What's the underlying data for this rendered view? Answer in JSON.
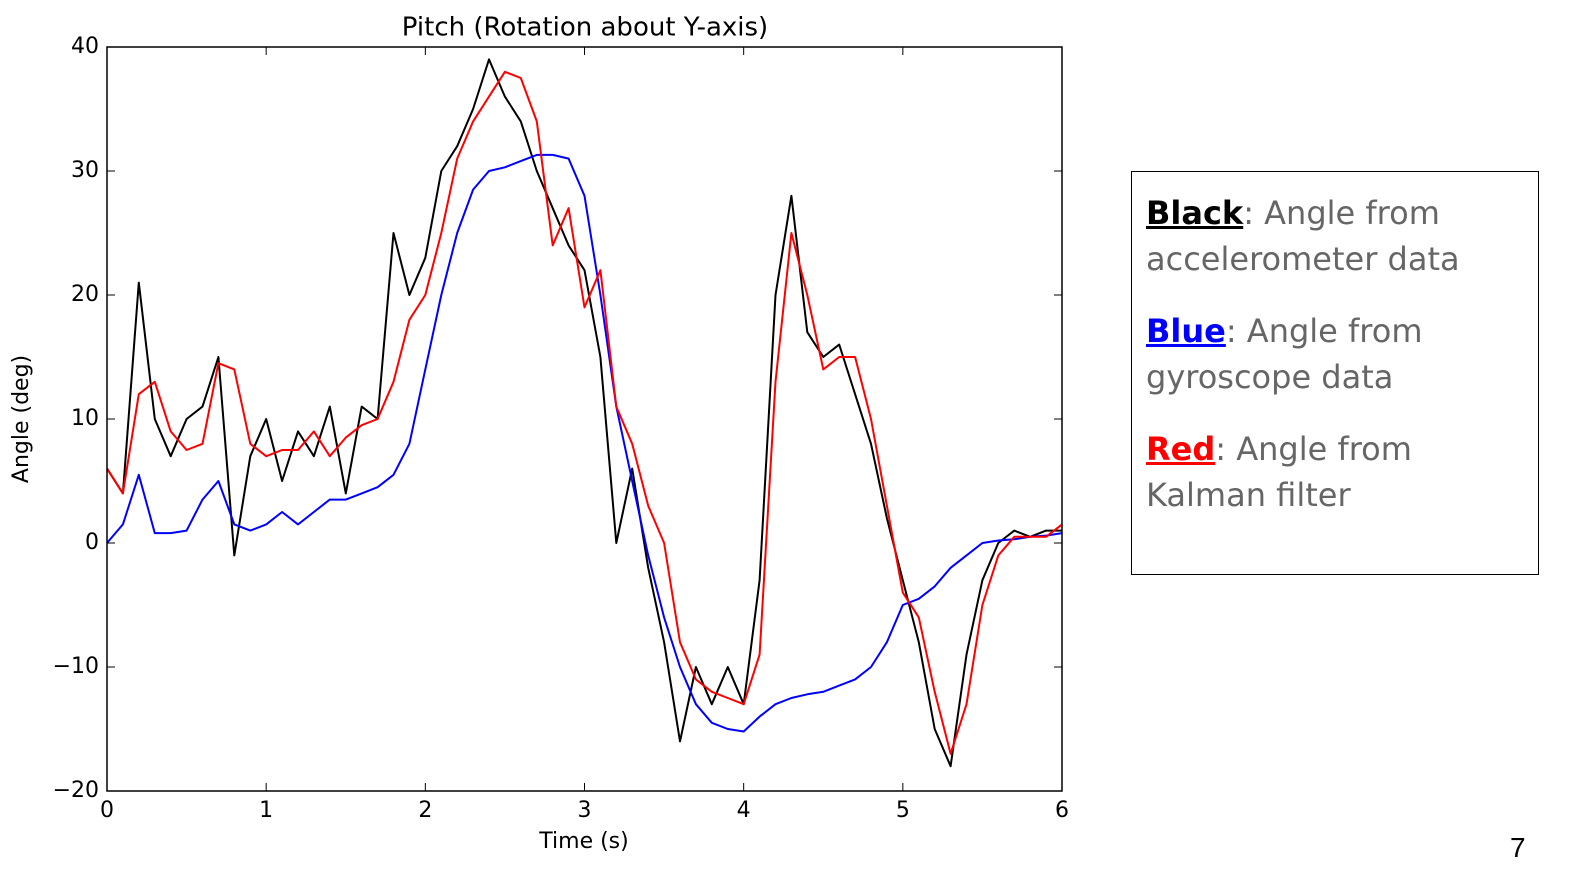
{
  "chart_data": {
    "type": "line",
    "title": "Pitch (Rotation about Y-axis)",
    "x_label": "Time (s)",
    "y_label": "Angle (deg)",
    "xlim": [
      0,
      6
    ],
    "xticks": [
      0,
      1,
      2,
      3,
      4,
      5,
      6
    ],
    "ylim": [
      -20,
      40
    ],
    "yticks": [
      {
        "value": -20,
        "label": "−20"
      },
      {
        "value": -10,
        "label": "−10"
      },
      0,
      10,
      20,
      30,
      40
    ],
    "x": [
      0,
      0.1,
      0.2,
      0.3,
      0.4,
      0.5,
      0.6,
      0.7,
      0.8,
      0.9,
      1,
      1.1,
      1.2,
      1.3,
      1.4,
      1.5,
      1.6,
      1.7,
      1.8,
      1.9,
      2,
      2.1,
      2.2,
      2.3,
      2.4,
      2.5,
      2.6,
      2.7,
      2.8,
      2.9,
      3,
      3.1,
      3.2,
      3.3,
      3.4,
      3.5,
      3.6,
      3.7,
      3.8,
      3.9,
      4,
      4.1,
      4.2,
      4.3,
      4.4,
      4.5,
      4.6,
      4.7,
      4.8,
      4.9,
      5,
      5.1,
      5.2,
      5.3,
      5.4,
      5.5,
      5.6,
      5.7,
      5.8,
      5.9,
      6
    ],
    "legend_separator": ":",
    "series": [
      {
        "color_label": "Black",
        "name": "Angle from accelerometer data",
        "color": "#000000",
        "values": [
          6,
          4,
          21,
          10,
          7,
          10,
          11,
          15,
          -1,
          7,
          10,
          5,
          9,
          7,
          11,
          4,
          11,
          10,
          25,
          20,
          23,
          30,
          32,
          35,
          39,
          36,
          34,
          30,
          27,
          24,
          22,
          15,
          0,
          6,
          -2,
          -8,
          -16,
          -10,
          -13,
          -10,
          -13,
          -3,
          20,
          28,
          17,
          15,
          16,
          12,
          8,
          2,
          -3,
          -8,
          -15,
          -18,
          -9,
          -3,
          0,
          1,
          0.5,
          1,
          1
        ]
      },
      {
        "color_label": "Blue",
        "name": "Angle from gyroscope data",
        "color": "#0000ff",
        "values": [
          0,
          1.5,
          5.5,
          0.8,
          0.8,
          1,
          3.5,
          5,
          1.5,
          1,
          1.5,
          2.5,
          1.5,
          2.5,
          3.5,
          3.5,
          4,
          4.5,
          5.5,
          8,
          14,
          20,
          25,
          28.5,
          30,
          30.3,
          30.8,
          31.3,
          31.3,
          31,
          28,
          20,
          11,
          5,
          -1,
          -6,
          -10,
          -13,
          -14.5,
          -15,
          -15.2,
          -14,
          -13,
          -12.5,
          -12.2,
          -12,
          -11.5,
          -11,
          -10,
          -8,
          -5,
          -4.5,
          -3.5,
          -2,
          -1,
          0,
          0.2,
          0.3,
          0.5,
          0.6,
          0.8
        ]
      },
      {
        "color_label": "Red",
        "name": "Angle from Kalman filter",
        "color": "#ff0000",
        "values": [
          6,
          4,
          12,
          13,
          9,
          7.5,
          8,
          14.5,
          14,
          8,
          7,
          7.5,
          7.5,
          9,
          7,
          8.5,
          9.5,
          10,
          13,
          18,
          20,
          25,
          31,
          34,
          36,
          38,
          37.5,
          34,
          24,
          27,
          19,
          22,
          11,
          8,
          3,
          0,
          -8,
          -11,
          -12,
          -12.5,
          -13,
          -9,
          13,
          25,
          20,
          14,
          15,
          15,
          10,
          3,
          -4,
          -6,
          -12,
          -17,
          -13,
          -5,
          -1,
          0.5,
          0.5,
          0.5,
          1.5
        ]
      }
    ]
  },
  "page_number": "7"
}
